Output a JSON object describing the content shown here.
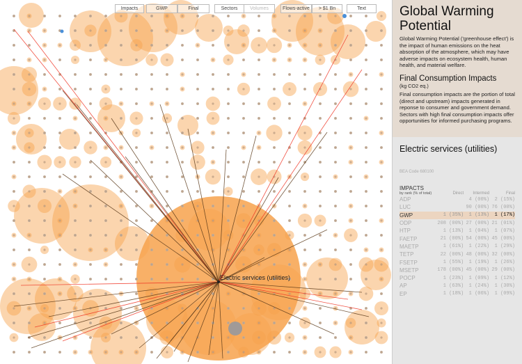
{
  "toolbar": [
    {
      "label": "Impacts",
      "dim": false
    },
    {
      "label": "GWP",
      "dim": false
    },
    {
      "label": "Final",
      "dim": false
    },
    {
      "label": "Sectors",
      "dim": false
    },
    {
      "label": "Volumes",
      "dim": true
    },
    {
      "label": "Flows-active",
      "dim": false
    },
    {
      "label": "> $1 Bn",
      "dim": false
    },
    {
      "label": "Text",
      "dim": false
    }
  ],
  "viz": {
    "selected_sector": "Electric services (utilities)",
    "colors": {
      "bubble": "#f7a24c",
      "line": "#5a3a1a",
      "flow_line": "#ee3322",
      "dot": "#c8b8a8",
      "highlight": "#4a90d9"
    }
  },
  "panel": {
    "title": "Global Warming Potential",
    "description": "Global Warming Potential ('greenhouse effect') is the impact of human emissions on the heat absorption of the atmosphere, which may have adverse impacts on ecosystem health, human health, and material welfare.",
    "subtitle": "Final Consumption Impacts",
    "unit": "(kg CO2 eq.)",
    "subdescription": "Final consumption impacts are the portion of total (direct and upstream) impacts generated in reponse to consumer and government demand.  Sectors with high final consumption impacts offer opportunities for informed purchasing programs.",
    "sector": "Electric services (utilities)",
    "code": "BEA Code 680100",
    "impacts_title": "IMPACTS",
    "impacts_sub": "by rank (% of total)",
    "columns": [
      "Direct",
      "Intermed",
      "Final"
    ],
    "rows": [
      {
        "name": "ADP",
        "direct": "",
        "intermed": "4 (00%)",
        "final": "2 (15%)"
      },
      {
        "name": "LUC",
        "direct": "",
        "intermed": "90 (00%)",
        "final": "76 (00%)"
      },
      {
        "name": "GWP",
        "direct": "1 (35%)",
        "intermed": "1 (13%)",
        "final": "1 (17%)",
        "hl": true
      },
      {
        "name": "ODP",
        "direct": "208 (00%)",
        "intermed": "27 (00%)",
        "final": "21 (01%)"
      },
      {
        "name": "HTP",
        "direct": "1 (13%)",
        "intermed": "1 (04%)",
        "final": "1 (07%)"
      },
      {
        "name": "FAETP",
        "direct": "21 (00%)",
        "intermed": "54 (00%)",
        "final": "45 (00%)"
      },
      {
        "name": "MAETP",
        "direct": "1 (61%)",
        "intermed": "1 (22%)",
        "final": "1 (29%)"
      },
      {
        "name": "TETP",
        "direct": "22 (00%)",
        "intermed": "48 (00%)",
        "final": "32 (00%)"
      },
      {
        "name": "FSETP",
        "direct": "1 (55%)",
        "intermed": "1 (19%)",
        "final": "1 (26%)"
      },
      {
        "name": "MSETP",
        "direct": "178 (00%)",
        "intermed": "45 (00%)",
        "final": "29 (00%)"
      },
      {
        "name": "POCP",
        "direct": "1 (23%)",
        "intermed": "1 (09%)",
        "final": "1 (12%)"
      },
      {
        "name": "AP",
        "direct": "1 (63%)",
        "intermed": "1 (24%)",
        "final": "1 (30%)"
      },
      {
        "name": "EP",
        "direct": "1 (18%)",
        "intermed": "1 (06%)",
        "final": "1 (09%)"
      }
    ]
  }
}
